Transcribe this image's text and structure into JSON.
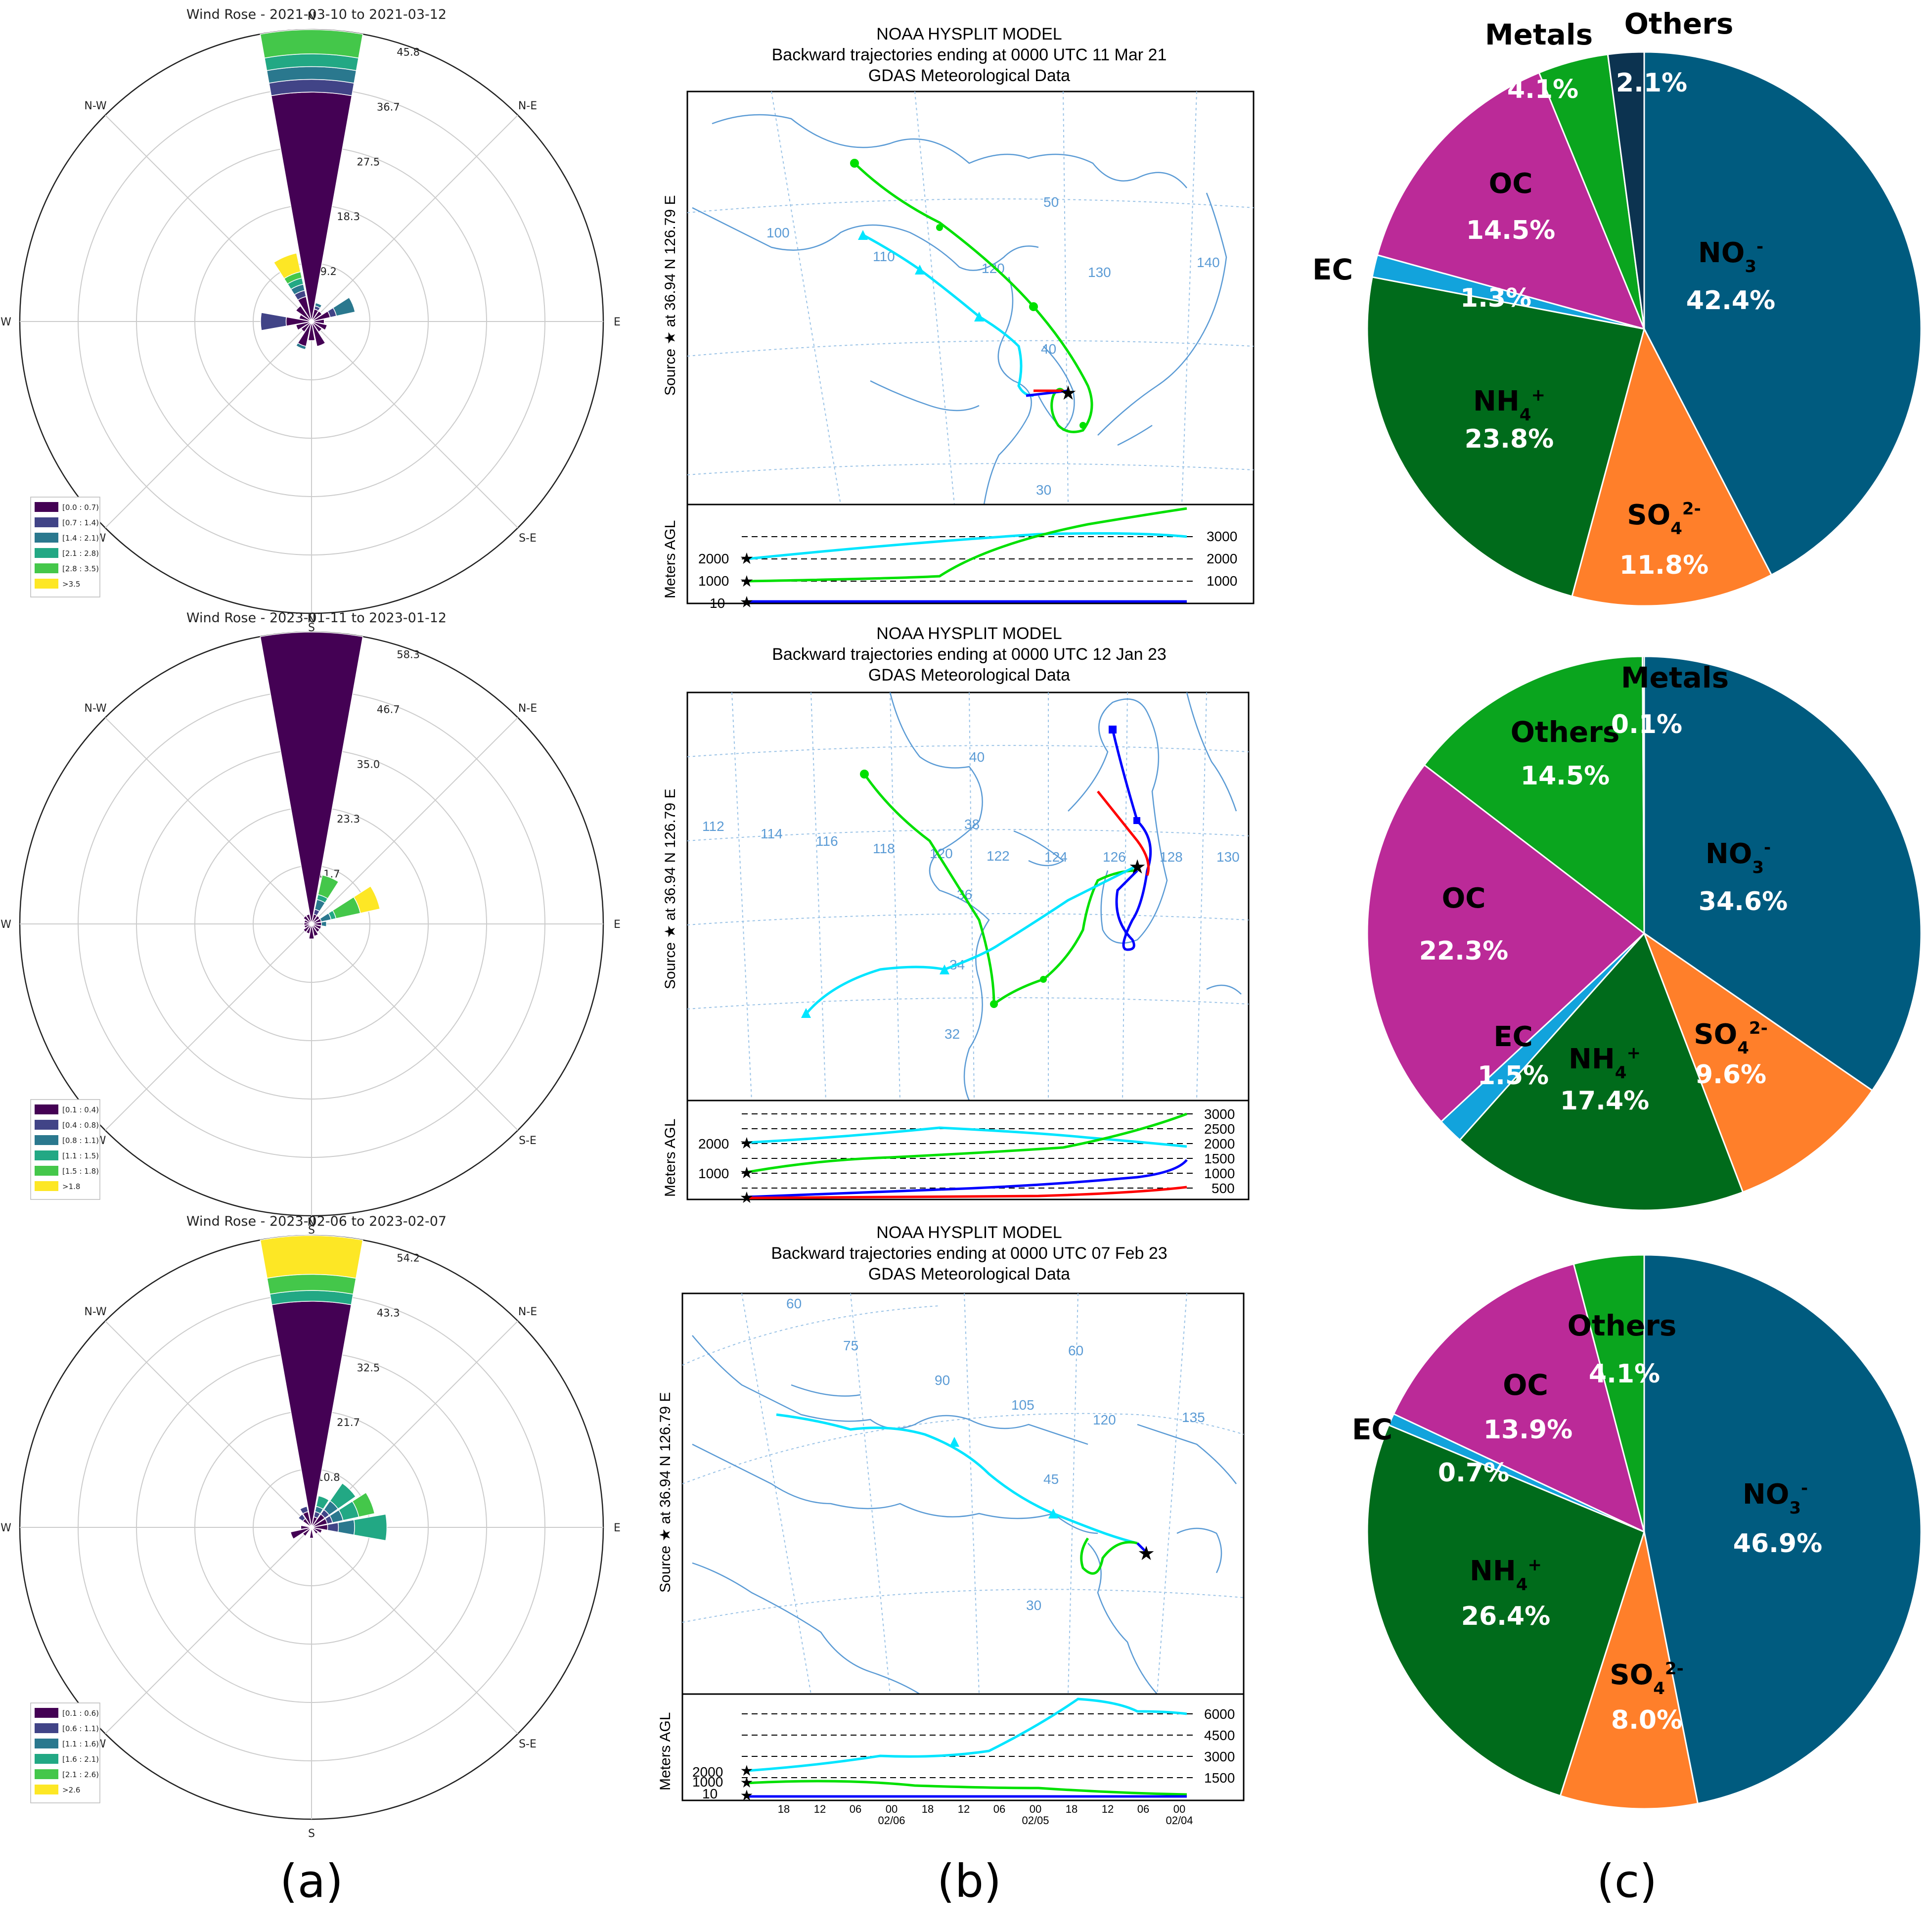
{
  "figure": {
    "panel_labels": [
      "(a)",
      "(b)",
      "(c)"
    ]
  },
  "chart_data": [
    {
      "type": "windrose",
      "title": "Wind Rose - 2021-03-10 to 2021-03-12",
      "directions": [
        "N",
        "N-E",
        "E",
        "S-E",
        "S",
        "S-W",
        "W",
        "N-W"
      ],
      "radial_ticks": [
        "9.2",
        "18.3",
        "27.5",
        "36.7",
        "45.8"
      ],
      "rmax": 45.8,
      "legend_entries": [
        "[0.0 : 0.7)",
        "[0.7 : 1.4)",
        "[1.4 : 2.1)",
        "[2.1 : 2.8)",
        "[2.8 : 3.5)",
        ">3.5"
      ],
      "sectors": [
        {
          "dir_deg": 0,
          "cum": [
            36,
            38,
            40,
            42,
            45.8,
            45.8
          ]
        },
        {
          "dir_deg": 22.5,
          "cum": [
            2,
            2.5,
            3,
            3,
            3,
            3
          ]
        },
        {
          "dir_deg": 45,
          "cum": [
            2,
            2,
            2,
            2,
            2,
            2
          ]
        },
        {
          "dir_deg": 67.5,
          "cum": [
            3,
            4,
            7,
            7,
            7,
            7
          ]
        },
        {
          "dir_deg": 90,
          "cum": [
            2,
            2,
            2,
            2,
            2,
            2
          ]
        },
        {
          "dir_deg": 112.5,
          "cum": [
            2.5,
            2.5,
            2.5,
            2.5,
            2.5,
            2.5
          ]
        },
        {
          "dir_deg": 135,
          "cum": [
            2,
            2,
            2,
            2,
            2,
            2
          ]
        },
        {
          "dir_deg": 157.5,
          "cum": [
            4,
            4,
            4,
            4,
            4,
            4
          ]
        },
        {
          "dir_deg": 180,
          "cum": [
            3,
            3,
            3,
            3,
            3,
            3
          ]
        },
        {
          "dir_deg": 202.5,
          "cum": [
            4,
            4,
            4.5,
            4.5,
            4.5,
            4.5
          ]
        },
        {
          "dir_deg": 225,
          "cum": [
            2,
            2,
            2,
            2,
            2,
            2
          ]
        },
        {
          "dir_deg": 247.5,
          "cum": [
            2.5,
            2.5,
            2.5,
            2.5,
            2.5,
            2.5
          ]
        },
        {
          "dir_deg": 270,
          "cum": [
            4,
            8,
            8,
            8,
            8,
            8
          ]
        },
        {
          "dir_deg": 292.5,
          "cum": [
            2,
            2,
            2,
            2,
            2,
            2
          ]
        },
        {
          "dir_deg": 315,
          "cum": [
            3,
            3,
            3,
            3,
            3,
            3
          ]
        },
        {
          "dir_deg": 337.5,
          "cum": [
            4,
            5,
            6,
            7,
            8,
            11
          ]
        }
      ]
    },
    {
      "type": "windrose",
      "title": "Wind Rose - 2023-01-11 to 2023-01-12",
      "directions": [
        "N",
        "N-E",
        "E",
        "S-E",
        "S",
        "S-W",
        "W",
        "N-W"
      ],
      "radial_ticks": [
        "11.7",
        "23.3",
        "35.0",
        "46.7",
        "58.3"
      ],
      "rmax": 58.3,
      "legend_entries": [
        "[0.1 : 0.4)",
        "[0.4 : 0.8)",
        "[0.8 : 1.1)",
        "[1.1 : 1.5)",
        "[1.5 : 1.8)",
        ">1.8"
      ],
      "sectors": [
        {
          "dir_deg": 0,
          "cum": [
            58.3,
            58.3,
            58.3,
            58.3,
            58.3,
            58.3
          ]
        },
        {
          "dir_deg": 22.5,
          "cum": [
            2,
            3,
            5,
            6,
            10,
            10
          ]
        },
        {
          "dir_deg": 45,
          "cum": [
            2,
            2,
            2,
            2,
            2,
            2
          ]
        },
        {
          "dir_deg": 67.5,
          "cum": [
            2,
            2,
            4,
            5,
            10,
            14
          ]
        },
        {
          "dir_deg": 90,
          "cum": [
            2,
            2,
            3,
            3,
            3,
            3
          ]
        },
        {
          "dir_deg": 112.5,
          "cum": [
            2,
            2,
            2,
            2,
            2,
            2
          ]
        },
        {
          "dir_deg": 135,
          "cum": [
            2,
            2,
            2,
            2,
            2,
            2
          ]
        },
        {
          "dir_deg": 157.5,
          "cum": [
            2.5,
            2.5,
            2.5,
            2.5,
            2.5,
            2.5
          ]
        },
        {
          "dir_deg": 180,
          "cum": [
            3,
            3,
            3,
            3,
            3,
            3
          ]
        },
        {
          "dir_deg": 202.5,
          "cum": [
            2,
            2,
            2,
            2,
            2,
            2
          ]
        },
        {
          "dir_deg": 225,
          "cum": [
            2,
            2,
            2,
            2,
            2,
            2
          ]
        },
        {
          "dir_deg": 247.5,
          "cum": [
            1.5,
            1.5,
            1.5,
            1.5,
            1.5,
            1.5
          ]
        },
        {
          "dir_deg": 270,
          "cum": [
            1.5,
            1.5,
            1.5,
            1.5,
            1.5,
            1.5
          ]
        },
        {
          "dir_deg": 292.5,
          "cum": [
            1.5,
            1.5,
            1.5,
            1.5,
            1.5,
            1.5
          ]
        },
        {
          "dir_deg": 315,
          "cum": [
            2,
            2,
            2,
            2,
            2,
            2
          ]
        },
        {
          "dir_deg": 337.5,
          "cum": [
            2,
            2,
            2,
            2,
            2,
            2
          ]
        }
      ]
    },
    {
      "type": "windrose",
      "title": "Wind Rose - 2023-02-06 to 2023-02-07",
      "directions": [
        "N",
        "N-E",
        "E",
        "S-E",
        "S",
        "S-W",
        "W",
        "N-W"
      ],
      "radial_ticks": [
        "10.8",
        "21.7",
        "32.5",
        "43.3",
        "54.2"
      ],
      "rmax": 54.2,
      "legend_entries": [
        "[0.1 : 0.6)",
        "[0.6 : 1.1)",
        "[1.1 : 1.6)",
        "[1.6 : 2.1)",
        "[2.1 : 2.6)",
        ">2.6"
      ],
      "sectors": [
        {
          "dir_deg": 0,
          "cum": [
            42,
            42,
            42,
            44,
            47,
            54.2
          ]
        },
        {
          "dir_deg": 22.5,
          "cum": [
            2,
            3,
            4,
            6,
            6,
            6
          ]
        },
        {
          "dir_deg": 45,
          "cum": [
            3,
            4,
            6,
            10,
            10,
            10
          ]
        },
        {
          "dir_deg": 67.5,
          "cum": [
            3,
            4,
            6,
            9,
            12,
            12
          ]
        },
        {
          "dir_deg": 90,
          "cum": [
            3,
            5,
            8,
            14,
            14,
            14
          ]
        },
        {
          "dir_deg": 112.5,
          "cum": [
            2,
            2,
            2,
            2,
            2,
            2
          ]
        },
        {
          "dir_deg": 135,
          "cum": [
            1.5,
            1.5,
            1.5,
            1.5,
            1.5,
            1.5
          ]
        },
        {
          "dir_deg": 180,
          "cum": [
            2,
            2,
            2,
            2,
            2,
            2
          ]
        },
        {
          "dir_deg": 225,
          "cum": [
            2,
            2,
            2,
            2,
            2,
            2
          ]
        },
        {
          "dir_deg": 247.5,
          "cum": [
            4,
            4,
            4,
            4,
            4,
            4
          ]
        },
        {
          "dir_deg": 270,
          "cum": [
            2,
            2,
            2,
            2,
            2,
            2
          ]
        },
        {
          "dir_deg": 315,
          "cum": [
            2,
            3,
            3,
            3,
            3,
            3
          ]
        },
        {
          "dir_deg": 337.5,
          "cum": [
            3,
            4,
            4,
            4,
            4,
            4
          ]
        }
      ]
    },
    {
      "type": "trajectory",
      "title_lines": [
        "NOAA HYSPLIT MODEL",
        "Backward trajectories ending at 0000 UTC 11 Mar 21",
        "GDAS Meteorological Data"
      ],
      "side_label": "Source ★ at 36.94 N 126.79 E",
      "height_label": "Meters AGL",
      "lon_labels": [
        "100",
        "110",
        "120",
        "130",
        "140"
      ],
      "lat_labels": [
        "50",
        "40",
        "30"
      ],
      "height_ticks": [
        "3000",
        "2000",
        "1000"
      ],
      "start_labels": [
        "2000",
        "1000",
        "10"
      ],
      "time_labels": []
    },
    {
      "type": "trajectory",
      "title_lines": [
        "NOAA HYSPLIT MODEL",
        "Backward trajectories ending at 0000 UTC 12 Jan 23",
        "GDAS Meteorological Data"
      ],
      "side_label": "Source ★ at 36.94 N 126.79 E",
      "height_label": "Meters AGL",
      "lon_labels": [
        "112",
        "114",
        "116",
        "118",
        "120",
        "122",
        "124",
        "126",
        "128",
        "130"
      ],
      "lat_labels": [
        "40",
        "38",
        "36",
        "34",
        "32"
      ],
      "height_ticks": [
        "3000",
        "2500",
        "2000",
        "1500",
        "1000",
        "500"
      ],
      "start_labels": [
        "2000",
        "1000"
      ],
      "time_labels": []
    },
    {
      "type": "trajectory",
      "title_lines": [
        "NOAA HYSPLIT MODEL",
        "Backward trajectories ending at 0000 UTC 07 Feb 23",
        "GDAS Meteorological Data"
      ],
      "side_label": "Source ★ at 36.94 N 126.79 E",
      "height_label": "Meters AGL",
      "lon_labels": [
        "60",
        "75",
        "90",
        "105",
        "120",
        "135",
        "60"
      ],
      "lat_labels": [
        "45",
        "30"
      ],
      "height_ticks": [
        "6000",
        "4500",
        "3000",
        "1500"
      ],
      "start_labels": [
        "2000",
        "1000",
        "10"
      ],
      "time_labels": [
        "18",
        "12",
        "06",
        "00",
        "18",
        "12",
        "06",
        "00",
        "18",
        "12",
        "06",
        "00"
      ],
      "date_labels": [
        "02/06",
        "02/05",
        "02/04"
      ]
    },
    {
      "type": "pie",
      "slices": [
        {
          "label": "NO3-",
          "percent": "42.4%",
          "value": 42.4,
          "color": "#005b7f"
        },
        {
          "label": "SO42-",
          "percent": "11.8%",
          "value": 11.8,
          "color": "#ff7f2a"
        },
        {
          "label": "NH4+",
          "percent": "23.8%",
          "value": 23.8,
          "color": "#006b1b"
        },
        {
          "label": "EC",
          "percent": "1.3%",
          "value": 1.3,
          "color": "#12a3dc"
        },
        {
          "label": "OC",
          "percent": "14.5%",
          "value": 14.5,
          "color": "#bb2a98"
        },
        {
          "label": "Metals",
          "percent": "4.1%",
          "value": 4.1,
          "color": "#0aa51e"
        },
        {
          "label": "Others",
          "percent": "2.1%",
          "value": 2.1,
          "color": "#0c3350"
        }
      ]
    },
    {
      "type": "pie",
      "slices": [
        {
          "label": "NO3-",
          "percent": "34.6%",
          "value": 34.6,
          "color": "#005b7f"
        },
        {
          "label": "SO42-",
          "percent": "9.6%",
          "value": 9.6,
          "color": "#ff7f2a"
        },
        {
          "label": "NH4+",
          "percent": "17.4%",
          "value": 17.4,
          "color": "#006b1b"
        },
        {
          "label": "EC",
          "percent": "1.5%",
          "value": 1.5,
          "color": "#12a3dc"
        },
        {
          "label": "OC",
          "percent": "22.3%",
          "value": 22.3,
          "color": "#bb2a98"
        },
        {
          "label": "Others",
          "percent": "14.5%",
          "value": 14.5,
          "color": "#0aa51e"
        },
        {
          "label": "Metals",
          "percent": "0.1%",
          "value": 0.1,
          "color": "#0c3350"
        }
      ]
    },
    {
      "type": "pie",
      "slices": [
        {
          "label": "NO3-",
          "percent": "46.9%",
          "value": 46.9,
          "color": "#005b7f"
        },
        {
          "label": "SO42-",
          "percent": "8.0%",
          "value": 8.0,
          "color": "#ff7f2a"
        },
        {
          "label": "NH4+",
          "percent": "26.4%",
          "value": 26.4,
          "color": "#006b1b"
        },
        {
          "label": "EC",
          "percent": "0.7%",
          "value": 0.7,
          "color": "#12a3dc"
        },
        {
          "label": "OC",
          "percent": "13.9%",
          "value": 13.9,
          "color": "#bb2a98"
        },
        {
          "label": "Others",
          "percent": "4.1%",
          "value": 4.1,
          "color": "#0aa51e"
        }
      ]
    }
  ],
  "palette": {
    "windrose_bins": [
      "#440154",
      "#414487",
      "#2a788e",
      "#22a884",
      "#44c74a",
      "#fde725"
    ],
    "trajectory_lines": [
      "#ff0000",
      "#0000ff",
      "#00e000",
      "#00e5ff"
    ]
  }
}
